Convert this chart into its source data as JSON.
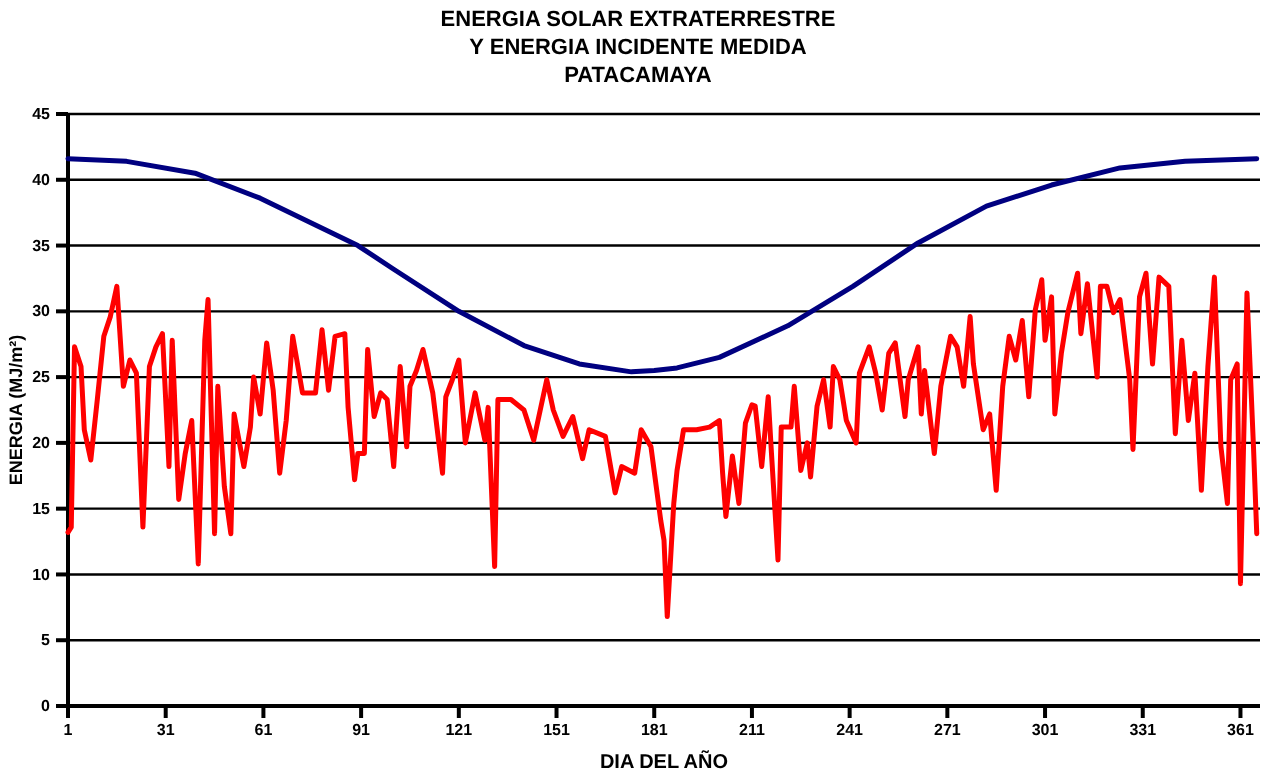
{
  "chart_data": {
    "type": "line",
    "title": "ENERGIA SOLAR EXTRATERRESTRE\nY ENERGIA INCIDENTE MEDIDA\nPATACAMAYA",
    "xlabel": "DIA DEL AÑO",
    "ylabel": "ENERGIA (MJ/m²)",
    "xlim": [
      1,
      367
    ],
    "xticks": [
      1,
      31,
      61,
      91,
      121,
      151,
      181,
      211,
      241,
      271,
      301,
      331,
      361
    ],
    "ylim": [
      0,
      45
    ],
    "yticks": [
      0,
      5,
      10,
      15,
      20,
      25,
      30,
      35,
      40,
      45
    ],
    "grid": "y",
    "marker": "none",
    "line_style": "solid",
    "series": [
      {
        "color": "#000080",
        "x": [
          1,
          19,
          40,
          60,
          80,
          90,
          101,
          121,
          141,
          158,
          174,
          181,
          188,
          201,
          222,
          242,
          262,
          283,
          303,
          324,
          344,
          366
        ],
        "values": [
          41.6,
          41.4,
          40.5,
          38.6,
          36.2,
          35.0,
          33.2,
          30.0,
          27.4,
          26.0,
          25.4,
          25.5,
          25.7,
          26.5,
          28.9,
          31.9,
          35.2,
          38.0,
          39.6,
          40.9,
          41.4,
          41.6
        ]
      },
      {
        "color": "#ff0000",
        "x": [
          1,
          2,
          3,
          5,
          6,
          8,
          10,
          12,
          14,
          16,
          18,
          20,
          22,
          24,
          26,
          28,
          30,
          32,
          33,
          35,
          37,
          39,
          41,
          43,
          44,
          46,
          47,
          49,
          51,
          52,
          55,
          57,
          58,
          60,
          62,
          64,
          66,
          68,
          70,
          73,
          77,
          79,
          81,
          83,
          86,
          87,
          89,
          90,
          92,
          93,
          95,
          97,
          99,
          101,
          103,
          105,
          106,
          108,
          110,
          113,
          116,
          117,
          119,
          121,
          123,
          126,
          129,
          130,
          132,
          133,
          137,
          141,
          144,
          146,
          148,
          150,
          153,
          156,
          159,
          161,
          166,
          169,
          171,
          175,
          177,
          180,
          183,
          184,
          185,
          187,
          188,
          190,
          194,
          198,
          201,
          202,
          203,
          205,
          207,
          209,
          211,
          212,
          214,
          216,
          217,
          219,
          220,
          223,
          224,
          226,
          228,
          229,
          231,
          233,
          235,
          236,
          238,
          240,
          243,
          244,
          247,
          249,
          251,
          253,
          255,
          258,
          259,
          262,
          263,
          264,
          267,
          269,
          272,
          274,
          276,
          278,
          279,
          282,
          284,
          286,
          288,
          290,
          292,
          294,
          296,
          298,
          300,
          301,
          303,
          304,
          306,
          308,
          311,
          312,
          314,
          317,
          318,
          320,
          322,
          324,
          327,
          328,
          330,
          332,
          334,
          336,
          339,
          341,
          343,
          345,
          347,
          349,
          351,
          353,
          355,
          357,
          358,
          360,
          361,
          363,
          365,
          366
        ],
        "values": [
          13.2,
          13.6,
          27.3,
          25.8,
          21.0,
          18.7,
          23.3,
          28.1,
          29.6,
          31.9,
          24.3,
          26.3,
          25.3,
          13.6,
          25.8,
          27.3,
          28.3,
          18.2,
          27.8,
          15.7,
          19.2,
          21.7,
          10.8,
          27.8,
          30.9,
          13.1,
          24.3,
          16.7,
          13.1,
          22.2,
          18.2,
          21.2,
          25.0,
          22.2,
          27.6,
          24.0,
          17.7,
          21.7,
          28.1,
          23.8,
          23.8,
          28.6,
          24.0,
          28.1,
          28.3,
          22.7,
          17.2,
          19.2,
          19.2,
          27.1,
          22.0,
          23.8,
          23.3,
          18.2,
          25.8,
          19.7,
          24.3,
          25.5,
          27.1,
          23.8,
          17.7,
          23.5,
          24.8,
          26.3,
          20.0,
          23.8,
          20.2,
          22.7,
          10.6,
          23.3,
          23.3,
          22.5,
          20.2,
          22.5,
          24.8,
          22.5,
          20.5,
          22.0,
          18.8,
          21.0,
          20.5,
          16.2,
          18.2,
          17.7,
          21.0,
          19.7,
          14.1,
          12.6,
          6.8,
          15.4,
          17.9,
          21.0,
          21.0,
          21.2,
          21.7,
          17.7,
          14.4,
          19.0,
          15.4,
          21.5,
          22.9,
          22.8,
          18.2,
          23.5,
          19.2,
          11.1,
          21.2,
          21.2,
          24.3,
          17.9,
          20.0,
          17.4,
          22.8,
          24.8,
          21.2,
          25.8,
          24.8,
          21.7,
          20.0,
          25.3,
          27.3,
          25.3,
          22.5,
          26.8,
          27.6,
          22.0,
          24.8,
          27.3,
          22.2,
          25.5,
          19.2,
          24.3,
          28.1,
          27.3,
          24.3,
          29.6,
          26.0,
          21.0,
          22.2,
          16.4,
          24.3,
          28.1,
          26.3,
          29.3,
          23.5,
          30.1,
          32.4,
          27.8,
          31.1,
          22.2,
          26.8,
          29.9,
          32.9,
          28.3,
          32.1,
          25.0,
          31.9,
          31.9,
          29.9,
          30.9,
          24.8,
          19.5,
          31.1,
          32.9,
          26.0,
          32.6,
          31.9,
          20.7,
          27.8,
          21.7,
          25.3,
          16.4,
          25.8,
          32.6,
          19.7,
          15.4,
          24.8,
          26.0,
          9.3,
          31.4,
          19.7,
          13.1
        ]
      }
    ]
  }
}
